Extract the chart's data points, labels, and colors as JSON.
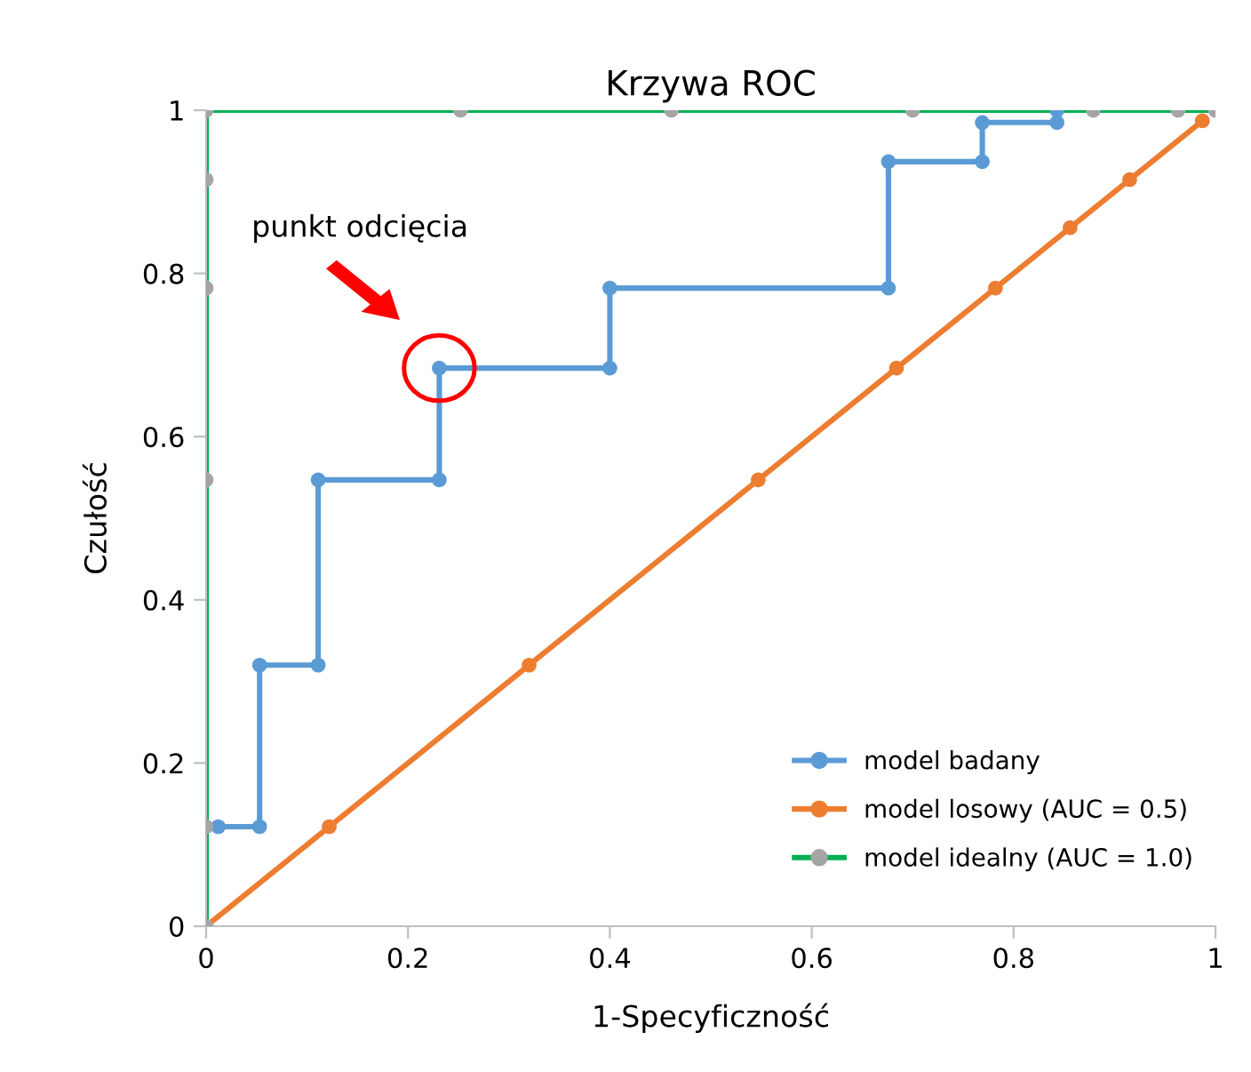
{
  "chart_data": {
    "type": "line",
    "title": "Krzywa ROC",
    "xlabel": "1-Specyficzność",
    "ylabel": "Czułość",
    "xlim": [
      0,
      1
    ],
    "ylim": [
      0,
      1
    ],
    "xticks": [
      0,
      0.2,
      0.4,
      0.6,
      0.8,
      1
    ],
    "yticks": [
      0,
      0.2,
      0.4,
      0.6,
      0.8,
      1
    ],
    "grid": false,
    "legend": "bottom right",
    "marker": "circle",
    "line_style": "solid",
    "annotations": [
      "punkt odcięcia"
    ],
    "series": [
      {
        "name": "model badany",
        "color": "#5b9bd5",
        "x": [
          0.012,
          0.053,
          0.053,
          0.111,
          0.111,
          0.231,
          0.231,
          0.4,
          0.4,
          0.676,
          0.676,
          0.769,
          0.769,
          0.843,
          0.843
        ],
        "values": [
          0.122,
          0.122,
          0.32,
          0.32,
          0.547,
          0.547,
          0.684,
          0.684,
          0.782,
          0.782,
          0.937,
          0.937,
          0.985,
          0.985,
          1.0
        ]
      },
      {
        "name": "model losowy (AUC = 0.5)",
        "color": "#ed7d31",
        "x": [
          0,
          0.122,
          0.32,
          0.547,
          0.684,
          0.782,
          0.856,
          0.915,
          0.987
        ],
        "values": [
          0,
          0.122,
          0.32,
          0.547,
          0.684,
          0.782,
          0.856,
          0.915,
          0.987
        ]
      },
      {
        "name": "model idealny (AUC = 1.0)",
        "color": "#00b050",
        "colors": [
          "#a5a5a5",
          "#a5a5a5",
          "#a5a5a5",
          "#a5a5a5",
          "#a5a5a5",
          "#a5a5a5",
          "#a5a5a5",
          "#a5a5a5",
          "#a5a5a5",
          "#a5a5a5",
          "#a5a5a5",
          "#a5a5a5"
        ],
        "x": [
          0,
          0,
          0,
          0,
          0,
          0,
          0.252,
          0.461,
          0.7,
          0.879,
          0.963,
          1
        ],
        "values": [
          0,
          0.122,
          0.547,
          0.782,
          0.915,
          1,
          1,
          1,
          1,
          1,
          1,
          1
        ]
      }
    ]
  }
}
